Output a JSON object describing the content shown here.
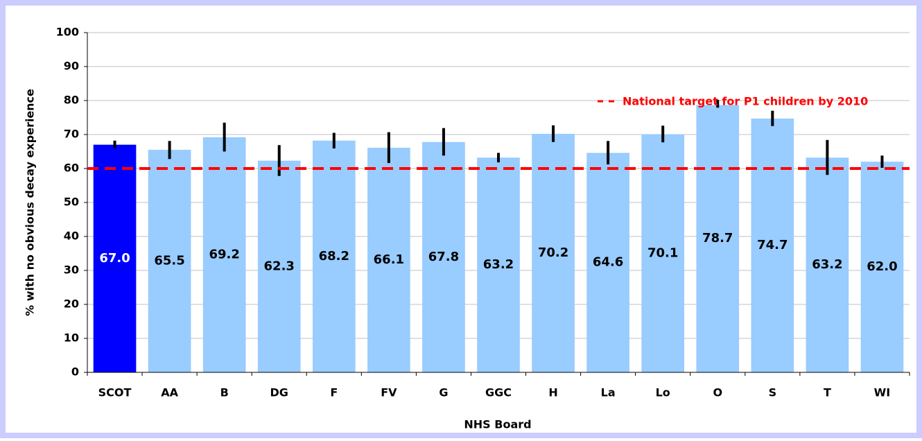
{
  "chart_data": {
    "type": "bar",
    "x_label": "NHS Board",
    "y_label": "% with no obvious decay experience",
    "categories": [
      "SCOT",
      "AA",
      "B",
      "DG",
      "F",
      "FV",
      "G",
      "GGC",
      "H",
      "La",
      "Lo",
      "O",
      "S",
      "T",
      "WI"
    ],
    "values": [
      67.0,
      65.5,
      69.2,
      62.3,
      68.2,
      66.1,
      67.8,
      63.2,
      70.2,
      64.6,
      70.1,
      78.7,
      74.7,
      63.2,
      62.0
    ],
    "value_labels": [
      "67.0",
      "65.5",
      "69.2",
      "62.3",
      "68.2",
      "66.1",
      "67.8",
      "63.2",
      "70.2",
      "64.6",
      "70.1",
      "78.7",
      "74.7",
      "63.2",
      "62.0"
    ],
    "ci_lower": [
      66.0,
      62.8,
      65.0,
      57.8,
      65.9,
      61.6,
      63.8,
      61.8,
      67.8,
      61.2,
      67.7,
      77.9,
      72.5,
      58.1,
      60.2
    ],
    "ci_upper": [
      68.2,
      68.1,
      73.5,
      66.9,
      70.5,
      70.7,
      71.9,
      64.6,
      72.7,
      68.1,
      72.6,
      80.2,
      77.0,
      68.4,
      63.8
    ],
    "colors": [
      "#0000ff",
      "#99ccff",
      "#99ccff",
      "#99ccff",
      "#99ccff",
      "#99ccff",
      "#99ccff",
      "#99ccff",
      "#99ccff",
      "#99ccff",
      "#99ccff",
      "#99ccff",
      "#99ccff",
      "#99ccff",
      "#99ccff"
    ],
    "label_colors": [
      "#ffffff",
      "#000000",
      "#000000",
      "#000000",
      "#000000",
      "#000000",
      "#000000",
      "#000000",
      "#000000",
      "#000000",
      "#000000",
      "#000000",
      "#000000",
      "#000000",
      "#000000"
    ],
    "target": {
      "value": 60,
      "label": "National target for P1 children by 2010",
      "color": "#ff0000"
    },
    "ylim": [
      0,
      100
    ],
    "yticks": [
      0,
      10,
      20,
      30,
      40,
      50,
      60,
      70,
      80,
      90,
      100
    ],
    "grid": true
  }
}
